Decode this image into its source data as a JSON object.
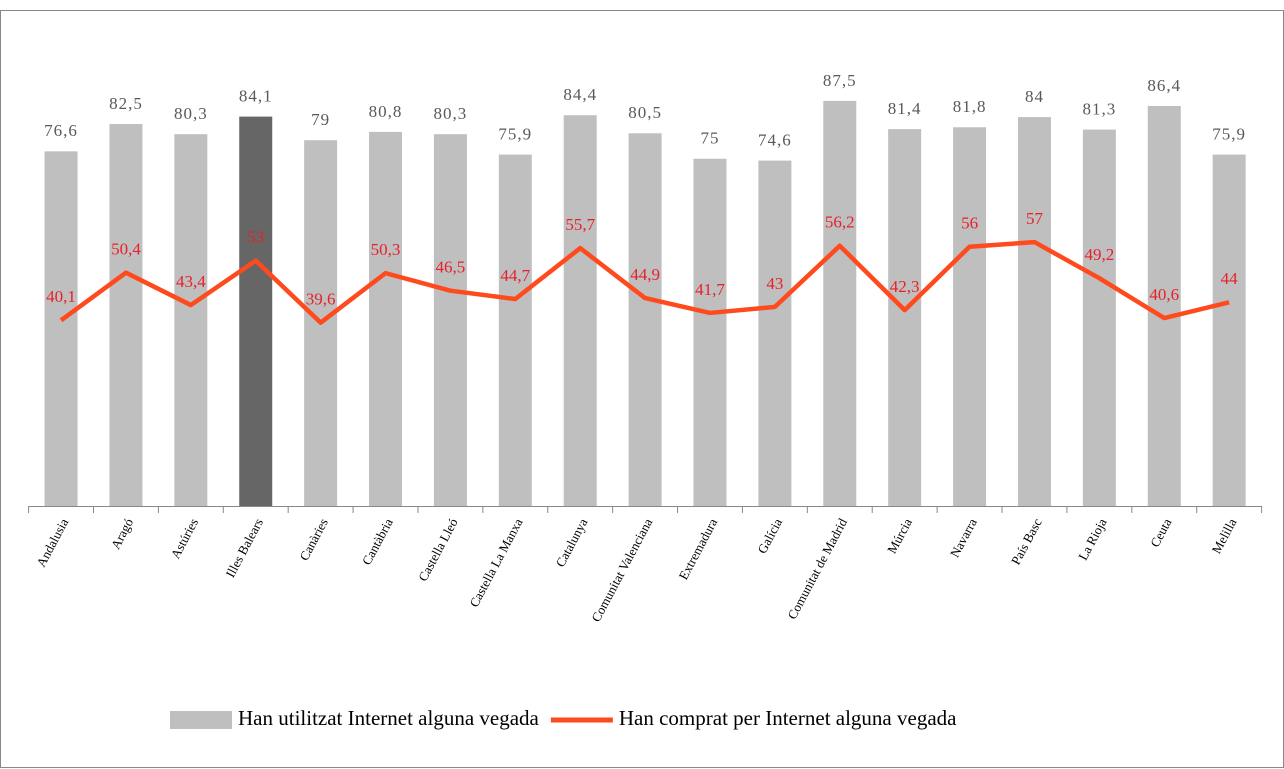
{
  "chart_data": {
    "type": "bar-line",
    "categories": [
      "Andalusia",
      "Aragó",
      "Astúries",
      "Illes Balears",
      "Canàries",
      "Cantàbria",
      "Castella Lleó",
      "Castella La Manxa",
      "Catalunya",
      "Comunitat Valenciana",
      "Extremadura",
      "Galícia",
      "Comunitat de Madrid",
      "Múrcia",
      "Navarra",
      "País Basc",
      "La Rioja",
      "Ceuta",
      "Melilla"
    ],
    "series": [
      {
        "name": "Han utilitzat Internet alguna vegada",
        "type": "bar",
        "color": "#bfbfbf",
        "colors": [
          "#bfbfbf",
          "#bfbfbf",
          "#bfbfbf",
          "#666666",
          "#bfbfbf",
          "#bfbfbf",
          "#bfbfbf",
          "#bfbfbf",
          "#bfbfbf",
          "#bfbfbf",
          "#bfbfbf",
          "#bfbfbf",
          "#bfbfbf",
          "#bfbfbf",
          "#bfbfbf",
          "#bfbfbf",
          "#bfbfbf",
          "#bfbfbf",
          "#bfbfbf"
        ],
        "values": [
          76.6,
          82.5,
          80.3,
          84.1,
          79,
          80.8,
          80.3,
          75.9,
          84.4,
          80.5,
          75,
          74.6,
          87.5,
          81.4,
          81.8,
          84,
          81.3,
          86.4,
          75.9
        ],
        "value_labels": [
          "76,6",
          "82,5",
          "80,3",
          "84,1",
          "79",
          "80,8",
          "80,3",
          "75,9",
          "84,4",
          "80,5",
          "75",
          "74,6",
          "87,5",
          "81,4",
          "81,8",
          "84",
          "81,3",
          "86,4",
          "75,9"
        ]
      },
      {
        "name": "Han comprat per Internet alguna vegada",
        "type": "line",
        "color": "#fe4a1d",
        "label_color": "#e8202a",
        "values": [
          40.1,
          50.4,
          43.4,
          53,
          39.6,
          50.3,
          46.5,
          44.7,
          55.7,
          44.9,
          41.7,
          43,
          56.2,
          42.3,
          56,
          57,
          49.2,
          40.6,
          44
        ],
        "value_labels": [
          "40,1",
          "50,4",
          "43,4",
          "53",
          "39,6",
          "50,3",
          "46,5",
          "44,7",
          "55,7",
          "44,9",
          "41,7",
          "43",
          "56,2",
          "42,3",
          "56",
          "57",
          "49,2",
          "40,6",
          "44"
        ]
      }
    ],
    "ylim": [
      0,
      100
    ],
    "legend": "bottom"
  }
}
